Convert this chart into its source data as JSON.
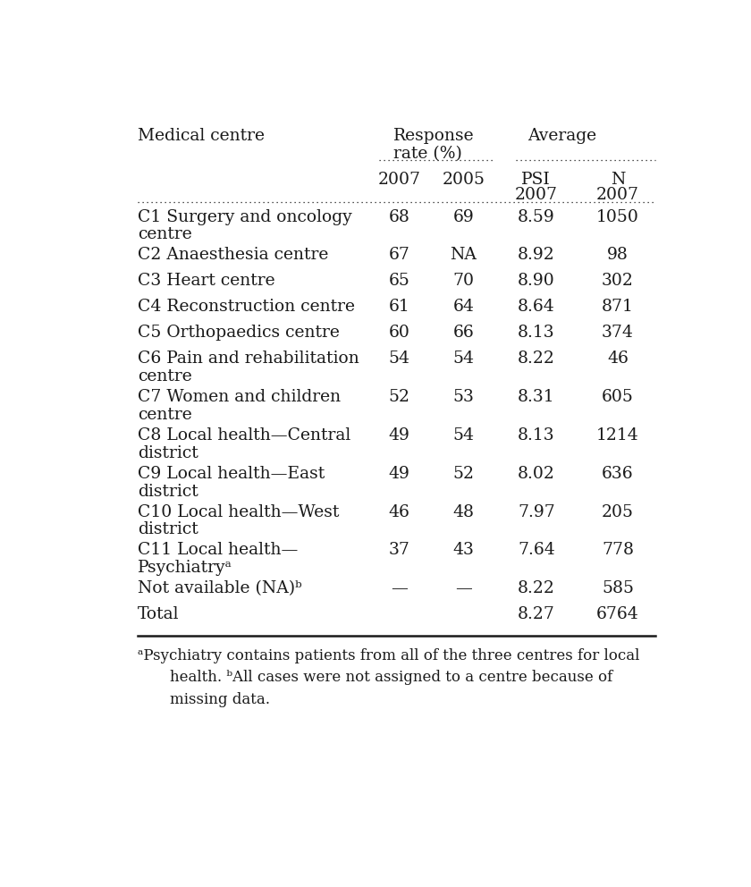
{
  "title_col1": "Medical centre",
  "title_response": "Response",
  "title_response2": "rate (%)",
  "title_average": "Average",
  "col_2007": "2007",
  "col_2005": "2005",
  "col_psi": "PSI",
  "col_psi2": "2007",
  "col_n": "N",
  "col_n2": "2007",
  "rows": [
    {
      "centre": "C1 Surgery and oncology\ncentre",
      "r2007": "68",
      "r2005": "69",
      "psi": "8.59",
      "n": "1050",
      "two_line": true
    },
    {
      "centre": "C2 Anaesthesia centre",
      "r2007": "67",
      "r2005": "NA",
      "psi": "8.92",
      "n": "98",
      "two_line": false
    },
    {
      "centre": "C3 Heart centre",
      "r2007": "65",
      "r2005": "70",
      "psi": "8.90",
      "n": "302",
      "two_line": false
    },
    {
      "centre": "C4 Reconstruction centre",
      "r2007": "61",
      "r2005": "64",
      "psi": "8.64",
      "n": "871",
      "two_line": false
    },
    {
      "centre": "C5 Orthopaedics centre",
      "r2007": "60",
      "r2005": "66",
      "psi": "8.13",
      "n": "374",
      "two_line": false
    },
    {
      "centre": "C6 Pain and rehabilitation\ncentre",
      "r2007": "54",
      "r2005": "54",
      "psi": "8.22",
      "n": "46",
      "two_line": true
    },
    {
      "centre": "C7 Women and children\ncentre",
      "r2007": "52",
      "r2005": "53",
      "psi": "8.31",
      "n": "605",
      "two_line": true
    },
    {
      "centre": "C8 Local health—Central\ndistrict",
      "r2007": "49",
      "r2005": "54",
      "psi": "8.13",
      "n": "1214",
      "two_line": true
    },
    {
      "centre": "C9 Local health—East\ndistrict",
      "r2007": "49",
      "r2005": "52",
      "psi": "8.02",
      "n": "636",
      "two_line": true
    },
    {
      "centre": "C10 Local health—West\ndistrict",
      "r2007": "46",
      "r2005": "48",
      "psi": "7.97",
      "n": "205",
      "two_line": true
    },
    {
      "centre": "C11 Local health—\nPsychiatryᵃ",
      "r2007": "37",
      "r2005": "43",
      "psi": "7.64",
      "n": "778",
      "two_line": true
    },
    {
      "centre": "Not available (NA)ᵇ",
      "r2007": "—",
      "r2005": "—",
      "psi": "8.22",
      "n": "585",
      "two_line": false
    },
    {
      "centre": "Total",
      "r2007": "",
      "r2005": "",
      "psi": "8.27",
      "n": "6764",
      "two_line": false
    }
  ],
  "footnote_line1": "ᵃPsychiatry contains patients from all of the three centres for local",
  "footnote_line2": "health. ᵇAll cases were not assigned to a centre because of",
  "footnote_line3": "missing data.",
  "bg_color": "#ffffff",
  "text_color": "#1a1a1a",
  "font_size": 13.5,
  "font_family": "serif",
  "fig_width": 8.4,
  "fig_height": 9.92,
  "dpi": 100
}
